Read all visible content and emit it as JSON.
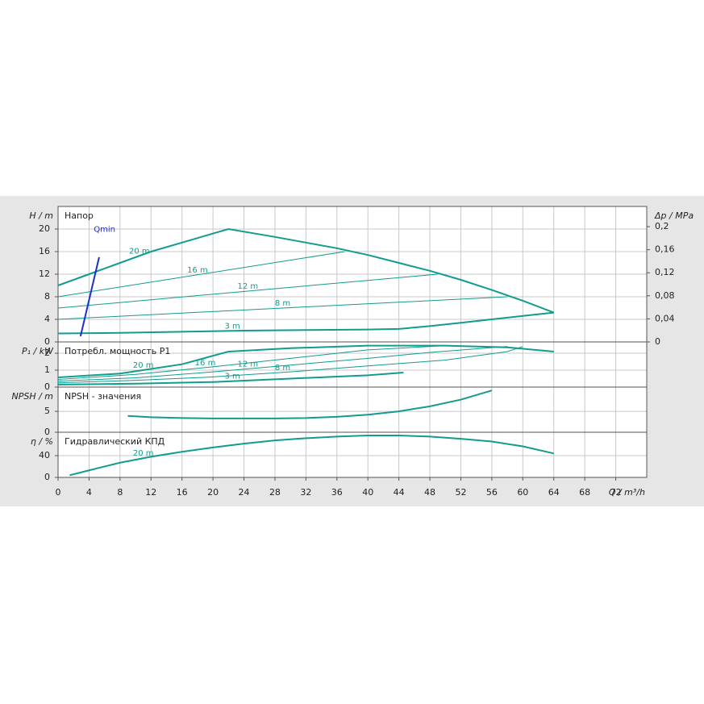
{
  "chart_data": [
    {
      "type": "line",
      "title": "Напор",
      "ylabel": "H / m",
      "y2label": "Δp / MPa",
      "ylim": [
        0,
        24
      ],
      "yticks": [
        0,
        4,
        8,
        12,
        16,
        20
      ],
      "y2lim": [
        0,
        0.235
      ],
      "y2ticks": [
        0,
        {
          "value": 0.04,
          "label": "0,04"
        },
        {
          "value": 0.08,
          "label": "0,08"
        },
        {
          "value": 0.12,
          "label": "0,12"
        },
        {
          "value": 0.16,
          "label": "0,16"
        },
        {
          "value": 0.2,
          "label": "0,2"
        }
      ],
      "grid": true,
      "series": [
        {
          "name": "20 m",
          "color": "#119c8c",
          "line_width": 2,
          "x": [
            0,
            4,
            8,
            12,
            16,
            20,
            22,
            28,
            32,
            36,
            40,
            44,
            48,
            52,
            56,
            60,
            64
          ],
          "values": [
            10,
            12,
            14,
            16,
            17.6,
            19.2,
            20,
            18.6,
            17.6,
            16.6,
            15.4,
            14,
            12.6,
            11,
            9.2,
            7.3,
            5.2
          ]
        },
        {
          "name": "16 m",
          "color": "#119c8c",
          "line_width": 1,
          "x": [
            0,
            37
          ],
          "values": [
            8,
            16
          ]
        },
        {
          "name": "12 m",
          "color": "#119c8c",
          "line_width": 1,
          "x": [
            0,
            49
          ],
          "values": [
            6,
            12
          ]
        },
        {
          "name": "8 m",
          "color": "#119c8c",
          "line_width": 1,
          "x": [
            0,
            58
          ],
          "values": [
            4,
            8
          ]
        },
        {
          "name": "3 m",
          "color": "#119c8c",
          "line_width": 2,
          "x": [
            0,
            8,
            16,
            24,
            32,
            40,
            44,
            48,
            52,
            56,
            60,
            64
          ],
          "values": [
            1.5,
            1.6,
            1.8,
            2.0,
            2.1,
            2.2,
            2.3,
            2.8,
            3.4,
            4.0,
            4.6,
            5.2
          ]
        },
        {
          "name": "Qmin",
          "color": "#1a2fd0",
          "line_width": 2,
          "x": [
            2.9,
            5.3
          ],
          "values": [
            1,
            15
          ]
        }
      ]
    },
    {
      "type": "line",
      "title": "Потребл. мощность P1",
      "ylabel": "P₁ / kW",
      "ylim": [
        0,
        2.67
      ],
      "yticks": [
        0,
        1,
        2
      ],
      "grid": true,
      "series": [
        {
          "name": "20 m",
          "color": "#119c8c",
          "line_width": 2,
          "x": [
            0,
            8,
            16,
            22,
            30,
            40,
            50,
            58,
            64
          ],
          "values": [
            0.57,
            0.8,
            1.35,
            2.1,
            2.3,
            2.45,
            2.45,
            2.35,
            2.1
          ]
        },
        {
          "name": "16 m",
          "color": "#119c8c",
          "line_width": 1,
          "x": [
            0,
            10,
            20,
            30,
            40,
            50
          ],
          "values": [
            0.45,
            0.75,
            1.2,
            1.7,
            2.2,
            2.45
          ]
        },
        {
          "name": "12 m",
          "color": "#119c8c",
          "line_width": 1,
          "x": [
            0,
            10,
            20,
            30,
            40,
            48,
            58
          ],
          "values": [
            0.35,
            0.55,
            0.9,
            1.3,
            1.7,
            2.05,
            2.4
          ]
        },
        {
          "name": "8 m",
          "color": "#119c8c",
          "line_width": 1,
          "x": [
            0,
            10,
            20,
            30,
            40,
            50,
            58,
            60
          ],
          "values": [
            0.25,
            0.4,
            0.6,
            0.9,
            1.25,
            1.6,
            2.1,
            2.4
          ]
        },
        {
          "name": "3 m",
          "color": "#119c8c",
          "line_width": 2,
          "x": [
            0,
            10,
            20,
            30,
            40,
            44.6
          ],
          "values": [
            0.15,
            0.2,
            0.3,
            0.5,
            0.7,
            0.86
          ]
        }
      ]
    },
    {
      "type": "line",
      "title": "NPSH - значения",
      "ylabel": "NPSH / m",
      "ylim": [
        0,
        10.8
      ],
      "yticks": [
        0,
        5
      ],
      "grid": true,
      "series": [
        {
          "color": "#119c8c",
          "line_width": 2,
          "x": [
            9,
            12,
            16,
            20,
            28,
            32,
            36,
            40,
            44,
            48,
            52,
            56
          ],
          "values": [
            3.9,
            3.6,
            3.4,
            3.3,
            3.3,
            3.4,
            3.7,
            4.2,
            5.0,
            6.2,
            7.8,
            10
          ]
        }
      ]
    },
    {
      "type": "line",
      "title": "Гидравлический КПД",
      "ylabel": "η / %",
      "xlabel": "Q / m³/h",
      "ylim": [
        0,
        83
      ],
      "yticks": [
        0,
        40
      ],
      "grid": true,
      "xlim": [
        0,
        76
      ],
      "xticks": [
        0,
        4,
        8,
        12,
        16,
        20,
        24,
        28,
        32,
        36,
        40,
        44,
        48,
        52,
        56,
        60,
        64,
        68,
        72
      ],
      "series": [
        {
          "name": "20 m",
          "color": "#119c8c",
          "line_width": 2,
          "x": [
            1.5,
            4,
            8,
            12,
            16,
            20,
            24,
            28,
            32,
            36,
            40,
            44,
            48,
            52,
            56,
            60,
            64
          ],
          "values": [
            4,
            13,
            27,
            38,
            47,
            55,
            62,
            68,
            72,
            75,
            77,
            77,
            75,
            71,
            66,
            57,
            44
          ]
        }
      ]
    }
  ]
}
